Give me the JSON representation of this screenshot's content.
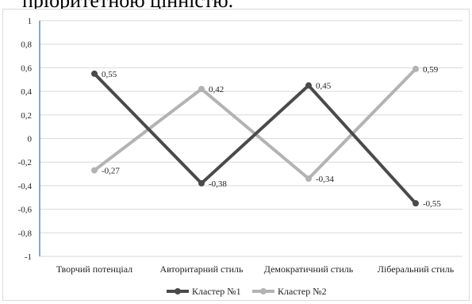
{
  "header_text": "пріоритетною цінністю.",
  "chart_data": {
    "type": "line",
    "title": "",
    "xlabel": "",
    "ylabel": "",
    "categories": [
      "Творчий потенціал",
      "Авторитарний стиль",
      "Демократичний стиль",
      "Ліберальний стиль"
    ],
    "y_ticks": [
      "1",
      "0,8",
      "0,6",
      "0,4",
      "0,2",
      "0",
      "-0,2",
      "-0,4",
      "-0,6",
      "-0,8",
      "-1"
    ],
    "ylim": [
      -1,
      1
    ],
    "grid": true,
    "legend_position": "bottom",
    "series": [
      {
        "name": "Кластер №1",
        "color": "#4a4a4a",
        "values": [
          0.55,
          -0.38,
          0.45,
          -0.55
        ],
        "labels": [
          "0,55",
          "-0,38",
          "0,45",
          "-0,55"
        ]
      },
      {
        "name": "Кластер №2",
        "color": "#b3b3b3",
        "values": [
          -0.27,
          0.42,
          -0.34,
          0.59
        ],
        "labels": [
          "-0,27",
          "0,42",
          "-0,34",
          "0,59"
        ]
      }
    ]
  }
}
